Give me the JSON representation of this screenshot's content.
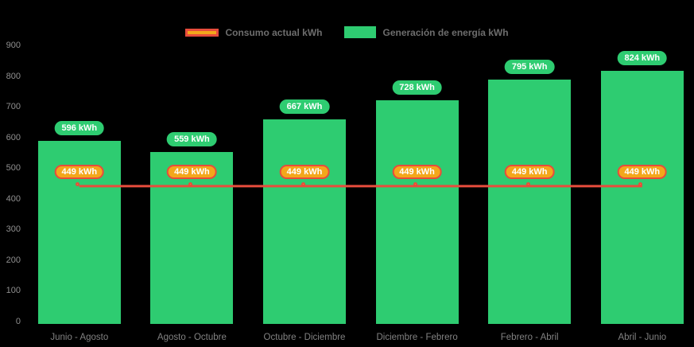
{
  "legend": {
    "consumo_label": "Consumo actual kWh",
    "generacion_label": "Generación de energía kWh"
  },
  "colors": {
    "background": "#000000",
    "bar_green": "#2ecc71",
    "line_red": "#e74c3c",
    "marker_gold": "#f3a71b",
    "pill_text": "#ffffff",
    "axis_text": "#8f8f8f",
    "legend_text": "#6d6d6d"
  },
  "chart_data": {
    "type": "bar",
    "unit": "kWh",
    "categories": [
      "Junio - Agosto",
      "Agosto - Octubre",
      "Octubre - Diciembre",
      "Diciembre - Febrero",
      "Febrero - Abril",
      "Abril - Junio"
    ],
    "series": [
      {
        "name": "Generación de energía kWh",
        "type": "bar",
        "color": "#2ecc71",
        "values": [
          596,
          559,
          667,
          728,
          795,
          824
        ]
      },
      {
        "name": "Consumo actual kWh",
        "type": "line",
        "color": "#e74c3c",
        "values": [
          449,
          449,
          449,
          449,
          449,
          449
        ]
      }
    ],
    "title": "",
    "xlabel": "",
    "ylabel": "",
    "ylim": [
      0,
      900
    ],
    "yticks": [
      0,
      100,
      200,
      300,
      400,
      500,
      600,
      700,
      800,
      900
    ],
    "grid": false,
    "legend_position": "top-center",
    "data_labels": "all points labeled with value + unit in rounded pills"
  }
}
